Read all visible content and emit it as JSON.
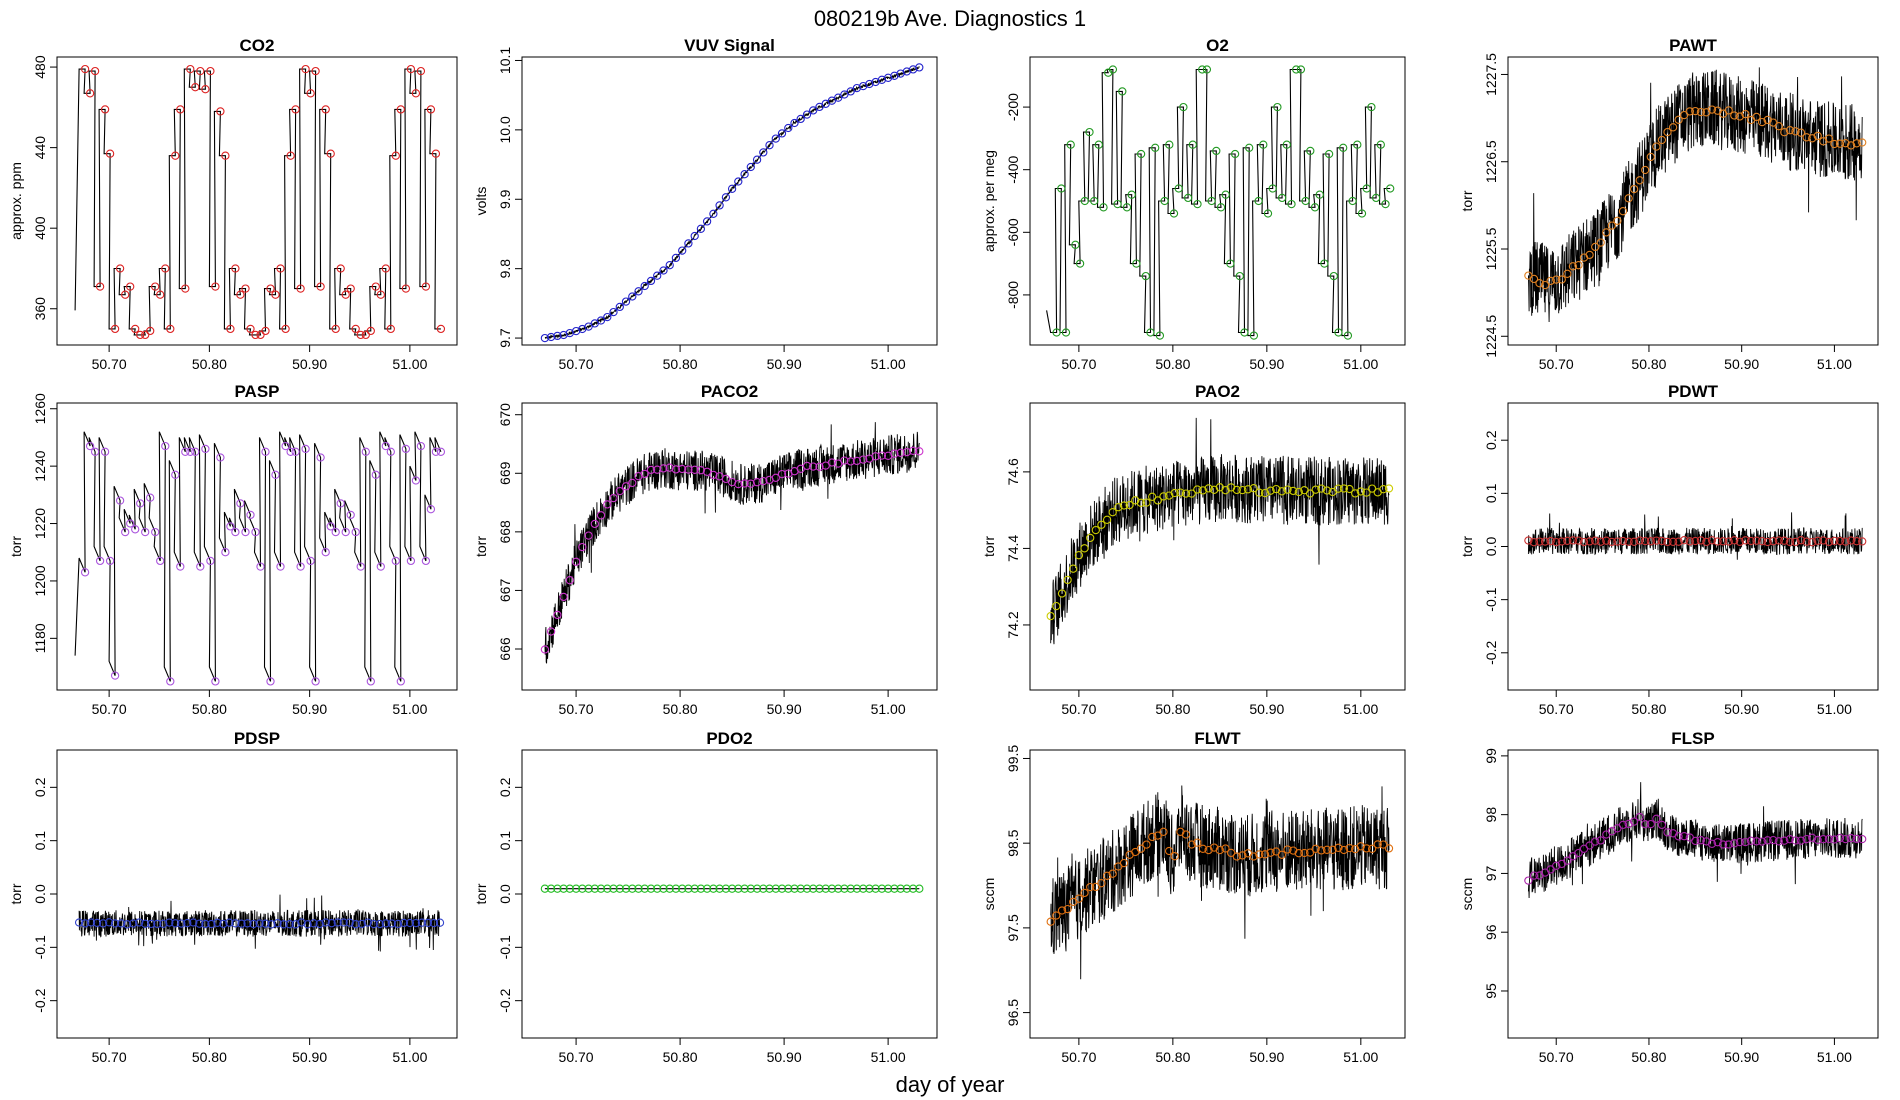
{
  "figure": {
    "title": "080219b   Ave. Diagnostics 1",
    "xlabel": "day of year"
  },
  "chart_data": [
    {
      "type": "line",
      "title": "CO2",
      "ylabel": "approx. ppm",
      "xlim": [
        50.648,
        51.047
      ],
      "ylim": [
        342,
        485
      ],
      "xticks": [
        50.7,
        50.8,
        50.9,
        51.0
      ],
      "xtick_labels": [
        "50.70",
        "50.80",
        "50.90",
        "51.00"
      ],
      "yticks": [
        360,
        400,
        440,
        480
      ],
      "ytick_labels": [
        "360",
        "400",
        "440",
        "480"
      ],
      "point_color": "#dd2222",
      "pattern": "steps",
      "noise": 0,
      "x": [
        50.672,
        50.677,
        50.682,
        50.687,
        50.692,
        50.697,
        50.702,
        50.707,
        50.712,
        50.717,
        50.722,
        50.727,
        50.732,
        50.737,
        50.742,
        50.747,
        50.752,
        50.757,
        50.762,
        50.767,
        50.772,
        50.777,
        50.782,
        50.787,
        50.792,
        50.797,
        50.802,
        50.807,
        50.812,
        50.817,
        50.822,
        50.827,
        50.832,
        50.837,
        50.842,
        50.847,
        50.852,
        50.857,
        50.862,
        50.867,
        50.872,
        50.877,
        50.882,
        50.887,
        50.892,
        50.897,
        50.902,
        50.907,
        50.912,
        50.917,
        50.922,
        50.927,
        50.932,
        50.937,
        50.942,
        50.947,
        50.952,
        50.957,
        50.962,
        50.967,
        50.972,
        50.977,
        50.982,
        50.987,
        50.992,
        50.997,
        51.002,
        51.007,
        51.012,
        51.017,
        51.022,
        51.027
      ],
      "y": [
        479,
        467,
        478,
        371,
        459,
        437,
        350,
        380,
        367,
        371,
        350,
        347,
        347,
        349,
        371,
        367,
        380,
        350,
        436,
        459,
        370,
        479,
        470,
        478,
        469,
        478,
        371,
        458,
        436,
        350,
        380,
        367,
        370,
        350,
        347,
        347,
        349,
        370,
        367,
        380,
        350,
        436,
        459,
        370,
        479,
        467,
        478,
        371,
        459,
        437,
        350,
        380,
        367,
        370,
        350,
        347,
        347,
        349,
        371,
        367,
        380,
        350,
        436,
        459,
        370,
        479,
        467,
        478,
        371,
        459,
        437,
        350
      ]
    },
    {
      "type": "line",
      "title": "VUV Signal",
      "ylabel": "volts",
      "xlim": [
        50.648,
        51.047
      ],
      "ylim": [
        9.69,
        10.105
      ],
      "xticks": [
        50.7,
        50.8,
        50.9,
        51.0
      ],
      "xtick_labels": [
        "50.70",
        "50.80",
        "50.90",
        "51.00"
      ],
      "yticks": [
        9.7,
        9.8,
        9.9,
        10.0,
        10.1
      ],
      "ytick_labels": [
        "9.7",
        "9.8",
        "9.9",
        "10.0",
        "10.1"
      ],
      "point_color": "#2222cc",
      "pattern": "smooth",
      "noise": 0.002,
      "x": [
        50.67,
        50.69,
        50.71,
        50.73,
        50.75,
        50.77,
        50.79,
        50.81,
        50.83,
        50.85,
        50.87,
        50.89,
        50.91,
        50.93,
        50.95,
        50.97,
        50.99,
        51.01,
        51.03
      ],
      "y": [
        9.7,
        9.705,
        9.715,
        9.73,
        9.755,
        9.78,
        9.805,
        9.84,
        9.875,
        9.915,
        9.95,
        9.985,
        10.01,
        10.03,
        10.045,
        10.06,
        10.07,
        10.08,
        10.09
      ]
    },
    {
      "type": "line",
      "title": "O2",
      "ylabel": "approx. per meg",
      "xlim": [
        50.648,
        51.047
      ],
      "ylim": [
        -960,
        -40
      ],
      "xticks": [
        50.7,
        50.8,
        50.9,
        51.0
      ],
      "xtick_labels": [
        "50.70",
        "50.80",
        "50.90",
        "51.00"
      ],
      "yticks": [
        -800,
        -600,
        -400,
        -200
      ],
      "ytick_labels": [
        "-800",
        "-600",
        "-400",
        "-200"
      ],
      "point_color": "#229922",
      "pattern": "steps",
      "noise": 0,
      "x": [
        50.672,
        50.677,
        50.682,
        50.687,
        50.692,
        50.697,
        50.702,
        50.707,
        50.712,
        50.717,
        50.722,
        50.727,
        50.732,
        50.737,
        50.742,
        50.747,
        50.752,
        50.757,
        50.762,
        50.767,
        50.772,
        50.777,
        50.782,
        50.787,
        50.792,
        50.797,
        50.802,
        50.807,
        50.812,
        50.817,
        50.822,
        50.827,
        50.832,
        50.837,
        50.842,
        50.847,
        50.852,
        50.857,
        50.862,
        50.867,
        50.872,
        50.877,
        50.882,
        50.887,
        50.892,
        50.897,
        50.902,
        50.907,
        50.912,
        50.917,
        50.922,
        50.927,
        50.932,
        50.937,
        50.942,
        50.947,
        50.952,
        50.957,
        50.962,
        50.967,
        50.972,
        50.977,
        50.982,
        50.987,
        50.992,
        50.997,
        51.002,
        51.007,
        51.012,
        51.017,
        51.022,
        51.027
      ],
      "y": [
        -920,
        -460,
        -920,
        -320,
        -640,
        -700,
        -500,
        -280,
        -500,
        -320,
        -520,
        -90,
        -80,
        -510,
        -150,
        -520,
        -480,
        -700,
        -350,
        -740,
        -920,
        -330,
        -930,
        -500,
        -320,
        -540,
        -460,
        -200,
        -490,
        -320,
        -510,
        -80,
        -80,
        -500,
        -340,
        -520,
        -480,
        -700,
        -350,
        -740,
        -920,
        -330,
        -930,
        -500,
        -320,
        -540,
        -460,
        -200,
        -490,
        -320,
        -510,
        -80,
        -80,
        -500,
        -340,
        -520,
        -480,
        -700,
        -350,
        -740,
        -920,
        -330,
        -930,
        -500,
        -320,
        -540,
        -460,
        -200,
        -490,
        -320,
        -510,
        -460
      ]
    },
    {
      "type": "line",
      "title": "PAWT",
      "ylabel": "torr",
      "xlim": [
        50.648,
        51.047
      ],
      "ylim": [
        1224.4,
        1227.7
      ],
      "xticks": [
        50.7,
        50.8,
        50.9,
        51.0
      ],
      "xtick_labels": [
        "50.70",
        "50.80",
        "50.90",
        "51.00"
      ],
      "yticks": [
        1224.5,
        1225.5,
        1226.5,
        1227.5
      ],
      "ytick_labels": [
        "1224.5",
        "1225.5",
        "1226.5",
        "1227.5"
      ],
      "point_color": "#e08020",
      "pattern": "smooth",
      "noise": 0.45,
      "x": [
        50.67,
        50.69,
        50.71,
        50.73,
        50.75,
        50.77,
        50.79,
        50.81,
        50.83,
        50.85,
        50.87,
        50.89,
        50.91,
        50.93,
        50.95,
        50.97,
        50.99,
        51.01,
        51.03
      ],
      "y": [
        1225.2,
        1225.1,
        1225.2,
        1225.4,
        1225.6,
        1225.9,
        1226.3,
        1226.7,
        1226.95,
        1227.1,
        1227.1,
        1227.05,
        1227.0,
        1226.95,
        1226.85,
        1226.8,
        1226.75,
        1226.7,
        1226.75
      ]
    },
    {
      "type": "line",
      "title": "PASP",
      "ylabel": "torr",
      "xlim": [
        50.648,
        51.047
      ],
      "ylim": [
        1162,
        1262
      ],
      "xticks": [
        50.7,
        50.8,
        50.9,
        51.0
      ],
      "xtick_labels": [
        "50.70",
        "50.80",
        "50.90",
        "51.00"
      ],
      "yticks": [
        1180,
        1200,
        1220,
        1240,
        1260
      ],
      "ytick_labels": [
        "1180",
        "1200",
        "1220",
        "1240",
        "1260"
      ],
      "point_color": "#aa55dd",
      "pattern": "steps",
      "noise": 0,
      "x": [
        50.672,
        50.677,
        50.682,
        50.687,
        50.692,
        50.697,
        50.702,
        50.707,
        50.712,
        50.717,
        50.722,
        50.727,
        50.732,
        50.737,
        50.742,
        50.747,
        50.752,
        50.757,
        50.762,
        50.767,
        50.772,
        50.777,
        50.782,
        50.787,
        50.792,
        50.797,
        50.802,
        50.807,
        50.812,
        50.817,
        50.822,
        50.827,
        50.832,
        50.837,
        50.842,
        50.847,
        50.852,
        50.857,
        50.862,
        50.867,
        50.872,
        50.877,
        50.882,
        50.887,
        50.892,
        50.897,
        50.902,
        50.907,
        50.912,
        50.917,
        50.922,
        50.927,
        50.932,
        50.937,
        50.942,
        50.947,
        50.952,
        50.957,
        50.962,
        50.967,
        50.972,
        50.977,
        50.982,
        50.987,
        50.992,
        50.997,
        51.002,
        51.007,
        51.012,
        51.017,
        51.022,
        51.027
      ],
      "y": [
        1208,
        1252,
        1250,
        1212,
        1250,
        1212,
        1172,
        1233,
        1222,
        1225,
        1223,
        1232,
        1222,
        1234,
        1222,
        1212,
        1252,
        1170,
        1242,
        1210,
        1250,
        1250,
        1250,
        1210,
        1251,
        1212,
        1170,
        1248,
        1215,
        1224,
        1222,
        1232,
        1222,
        1228,
        1222,
        1210,
        1250,
        1170,
        1242,
        1210,
        1252,
        1250,
        1250,
        1210,
        1251,
        1212,
        1170,
        1248,
        1215,
        1224,
        1222,
        1232,
        1222,
        1228,
        1222,
        1210,
        1250,
        1170,
        1242,
        1210,
        1252,
        1250,
        1212,
        1170,
        1251,
        1212,
        1240,
        1252,
        1212,
        1230,
        1250,
        1250
      ]
    },
    {
      "type": "line",
      "title": "PACO2",
      "ylabel": "torr",
      "xlim": [
        50.648,
        51.047
      ],
      "ylim": [
        665.3,
        670.2
      ],
      "xticks": [
        50.7,
        50.8,
        50.9,
        51.0
      ],
      "xtick_labels": [
        "50.70",
        "50.80",
        "50.90",
        "51.00"
      ],
      "yticks": [
        666,
        667,
        668,
        669,
        670
      ],
      "ytick_labels": [
        "666",
        "667",
        "668",
        "669",
        "670"
      ],
      "point_color": "#cc33cc",
      "pattern": "smooth",
      "noise": 0.35,
      "x": [
        50.67,
        50.68,
        50.69,
        50.7,
        50.71,
        50.72,
        50.73,
        50.74,
        50.75,
        50.76,
        50.78,
        50.8,
        50.82,
        50.84,
        50.86,
        50.88,
        50.9,
        50.92,
        50.94,
        50.96,
        50.98,
        51.0,
        51.03
      ],
      "y": [
        666.0,
        666.5,
        667.0,
        667.5,
        667.9,
        668.2,
        668.45,
        668.65,
        668.8,
        668.95,
        669.1,
        669.05,
        669.05,
        668.95,
        668.8,
        668.85,
        669.0,
        669.1,
        669.15,
        669.2,
        669.25,
        669.3,
        669.4
      ]
    },
    {
      "type": "line",
      "title": "PAO2",
      "ylabel": "torr",
      "xlim": [
        50.648,
        51.047
      ],
      "ylim": [
        74.03,
        74.78
      ],
      "xticks": [
        50.7,
        50.8,
        50.9,
        51.0
      ],
      "xtick_labels": [
        "50.70",
        "50.80",
        "50.90",
        "51.00"
      ],
      "yticks": [
        74.2,
        74.4,
        74.6
      ],
      "ytick_labels": [
        "74.2",
        "74.4",
        "74.6"
      ],
      "point_color": "#cccc00",
      "pattern": "smooth",
      "noise": 0.09,
      "x": [
        50.67,
        50.68,
        50.69,
        50.7,
        50.71,
        50.72,
        50.73,
        50.74,
        50.76,
        50.78,
        50.8,
        50.83,
        50.86,
        50.9,
        50.95,
        51.0,
        51.03
      ],
      "y": [
        74.22,
        74.27,
        74.33,
        74.38,
        74.42,
        74.45,
        74.48,
        74.5,
        74.52,
        74.53,
        74.54,
        74.55,
        74.56,
        74.55,
        74.55,
        74.55,
        74.55
      ]
    },
    {
      "type": "line",
      "title": "PDWT",
      "ylabel": "torr",
      "xlim": [
        50.648,
        51.047
      ],
      "ylim": [
        -0.27,
        0.27
      ],
      "xticks": [
        50.7,
        50.8,
        50.9,
        51.0
      ],
      "xtick_labels": [
        "50.70",
        "50.80",
        "50.90",
        "51.00"
      ],
      "yticks": [
        -0.2,
        -0.1,
        0.0,
        0.1,
        0.2
      ],
      "ytick_labels": [
        "-0.2",
        "-0.1",
        "0.0",
        "0.1",
        "0.2"
      ],
      "point_color": "#cc3333",
      "pattern": "smooth",
      "noise": 0.025,
      "x": [
        50.67,
        51.03
      ],
      "y": [
        0.01,
        0.01
      ]
    },
    {
      "type": "line",
      "title": "PDSP",
      "ylabel": "torr",
      "xlim": [
        50.648,
        51.047
      ],
      "ylim": [
        -0.27,
        0.27
      ],
      "xticks": [
        50.7,
        50.8,
        50.9,
        51.0
      ],
      "xtick_labels": [
        "50.70",
        "50.80",
        "50.90",
        "51.00"
      ],
      "yticks": [
        -0.2,
        -0.1,
        0.0,
        0.1,
        0.2
      ],
      "ytick_labels": [
        "-0.2",
        "-0.1",
        "0.0",
        "0.1",
        "0.2"
      ],
      "point_color": "#3344cc",
      "pattern": "smooth",
      "noise": 0.025,
      "x": [
        50.67,
        51.03
      ],
      "y": [
        -0.055,
        -0.055
      ]
    },
    {
      "type": "line",
      "title": "PDO2",
      "ylabel": "torr",
      "xlim": [
        50.648,
        51.047
      ],
      "ylim": [
        -0.27,
        0.27
      ],
      "xticks": [
        50.7,
        50.8,
        50.9,
        51.0
      ],
      "xtick_labels": [
        "50.70",
        "50.80",
        "50.90",
        "51.00"
      ],
      "yticks": [
        -0.2,
        -0.1,
        0.0,
        0.1,
        0.2
      ],
      "ytick_labels": [
        "-0.2",
        "-0.1",
        "0.0",
        "0.1",
        "0.2"
      ],
      "point_color": "#22bb22",
      "pattern": "smooth",
      "noise": 0,
      "x": [
        50.67,
        51.03
      ],
      "y": [
        0.01,
        0.01
      ]
    },
    {
      "type": "line",
      "title": "FLWT",
      "ylabel": "sccm",
      "xlim": [
        50.648,
        51.047
      ],
      "ylim": [
        96.2,
        99.6
      ],
      "xticks": [
        50.7,
        50.8,
        50.9,
        51.0
      ],
      "xtick_labels": [
        "50.70",
        "50.80",
        "50.90",
        "51.00"
      ],
      "yticks": [
        96.5,
        97.5,
        98.5,
        99.5
      ],
      "ytick_labels": [
        "96.5",
        "97.5",
        "98.5",
        "99.5"
      ],
      "point_color": "#e07010",
      "pattern": "smooth",
      "noise": 0.5,
      "x": [
        50.67,
        50.69,
        50.71,
        50.73,
        50.75,
        50.77,
        50.79,
        50.8,
        50.81,
        50.815,
        50.82,
        50.84,
        50.86,
        50.88,
        50.9,
        50.93,
        50.96,
        51.0,
        51.03
      ],
      "y": [
        97.6,
        97.75,
        97.95,
        98.1,
        98.3,
        98.5,
        98.65,
        98.3,
        98.7,
        98.55,
        98.5,
        98.45,
        98.4,
        98.35,
        98.4,
        98.4,
        98.42,
        98.45,
        98.45
      ]
    },
    {
      "type": "line",
      "title": "FLSP",
      "ylabel": "sccm",
      "xlim": [
        50.648,
        51.047
      ],
      "ylim": [
        94.2,
        99.1
      ],
      "xticks": [
        50.7,
        50.8,
        50.9,
        51.0
      ],
      "xtick_labels": [
        "50.70",
        "50.80",
        "50.90",
        "51.00"
      ],
      "yticks": [
        95,
        96,
        97,
        98,
        99
      ],
      "ytick_labels": [
        "95",
        "96",
        "97",
        "98",
        "99"
      ],
      "point_color": "#aa22aa",
      "pattern": "smooth",
      "noise": 0.35,
      "x": [
        50.67,
        50.69,
        50.71,
        50.73,
        50.75,
        50.77,
        50.79,
        50.8,
        50.81,
        50.82,
        50.84,
        50.86,
        50.88,
        50.9,
        50.93,
        50.96,
        51.0,
        51.03
      ],
      "y": [
        96.9,
        97.05,
        97.2,
        97.4,
        97.6,
        97.8,
        97.95,
        97.8,
        97.95,
        97.7,
        97.6,
        97.55,
        97.5,
        97.52,
        97.55,
        97.58,
        97.6,
        97.6
      ]
    }
  ]
}
